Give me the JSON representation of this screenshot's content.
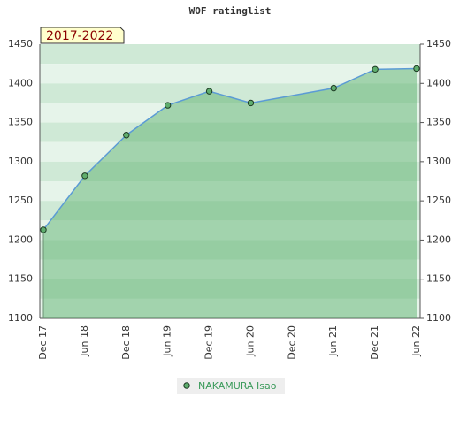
{
  "chart_data": {
    "type": "area",
    "title": "WOF ratinglist",
    "badge": "2017-2022",
    "xticks": [
      "Dec 17",
      "Jun 18",
      "Dec 18",
      "Jun 19",
      "Dec 19",
      "Jun 20",
      "Dec 20",
      "Jun 21",
      "Dec 21",
      "Jun 22"
    ],
    "x": [
      "Dec 17",
      "Jun 18",
      "Dec 18",
      "Jun 19",
      "Dec 19",
      "Jun 20",
      "Jun 21",
      "Dec 21",
      "Jun 22"
    ],
    "series": [
      {
        "name": "NAKAMURA Isao",
        "color": "#5b9bd5",
        "values": [
          1213,
          1282,
          1334,
          1372,
          1390,
          1375,
          1394,
          1418,
          1419
        ]
      }
    ],
    "ylim": [
      1100,
      1450
    ],
    "yticks": [
      1100,
      1150,
      1200,
      1250,
      1300,
      1350,
      1400,
      1450
    ]
  }
}
